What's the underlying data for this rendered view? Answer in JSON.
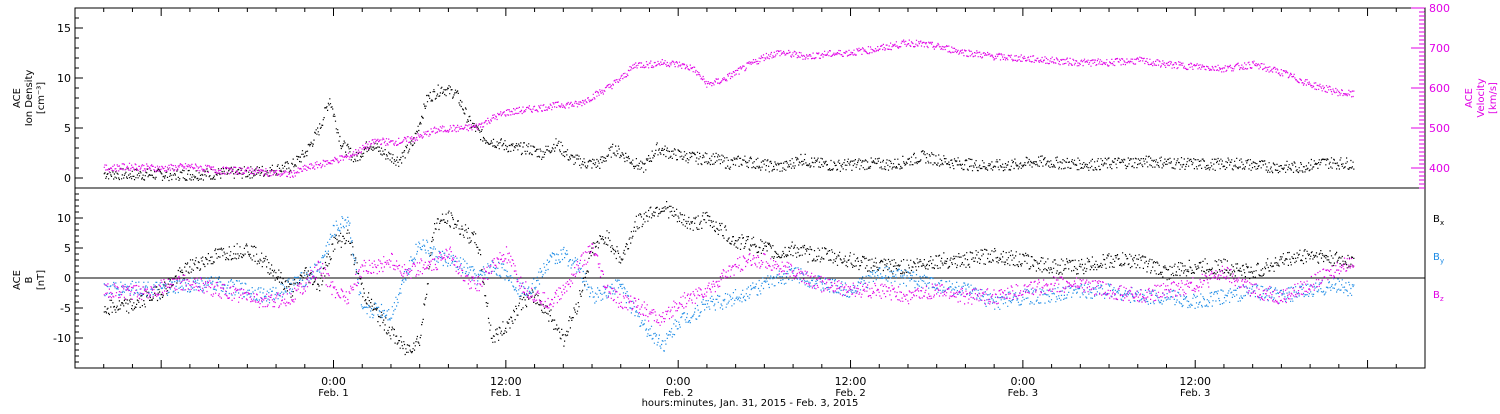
{
  "chart_data": [
    {
      "type": "scatter",
      "panel": "top",
      "ylabel_left": [
        "ACE",
        "Ion Density",
        "[cm⁻³]"
      ],
      "ylabel_right": [
        "ACE",
        "Velocity",
        "[km/s]"
      ],
      "ylim_left": [
        -1,
        17
      ],
      "ylim_right": [
        350,
        800
      ],
      "yticks_left": [
        "0",
        "5",
        "10",
        "15"
      ],
      "yticks_right": [
        "400",
        "500",
        "600",
        "700",
        "800"
      ],
      "series": [
        {
          "axis": "left",
          "color": "#000000",
          "x_hours": [
            -16,
            -14,
            -12,
            -10,
            -8,
            -6,
            -4.5,
            -3,
            -2,
            -1,
            -0.3,
            0.5,
            1.5,
            2.5,
            3.5,
            4.5,
            5.5,
            6.5,
            7.5,
            8.5,
            9.5,
            10.5,
            11.5,
            12.5,
            13.5,
            14.5,
            15.5,
            16.5,
            17.5,
            18.5,
            19.5,
            20.5,
            21.5,
            22.5,
            23.5,
            24.5,
            25.5,
            26.5,
            27.5,
            28.5,
            29.5,
            30.5,
            31.5,
            32.5,
            33.5,
            35,
            37,
            39,
            41,
            43,
            45,
            47,
            49,
            51,
            53,
            55,
            57,
            59,
            61,
            63,
            65,
            67,
            69,
            71
          ],
          "y": [
            0.5,
            0.4,
            0.4,
            0.4,
            0.5,
            0.6,
            0.8,
            1.2,
            2.5,
            5,
            8,
            3.5,
            2,
            3.5,
            2.5,
            1.8,
            3.5,
            8,
            9,
            8.5,
            5.5,
            4,
            3.5,
            3,
            3,
            2.5,
            3.5,
            2,
            1.5,
            1.5,
            3,
            2,
            1,
            3,
            2.5,
            2.2,
            2,
            2,
            1.5,
            1.8,
            1.5,
            1.2,
            1.2,
            2,
            1.5,
            1.3,
            1.5,
            1.4,
            2.2,
            1.6,
            1.3,
            1.3,
            1.7,
            1.5,
            1.4,
            1.6,
            1.7,
            1.5,
            1.4,
            1.5,
            1.2,
            1.1,
            1.6,
            1.5
          ]
        },
        {
          "axis": "right",
          "color": "#e100e6",
          "x_hours": [
            -16,
            -14,
            -12,
            -10,
            -8,
            -6,
            -4.5,
            -3,
            -2,
            -1,
            0,
            1,
            2,
            3,
            4,
            5,
            6,
            7,
            8,
            9,
            10,
            11,
            12,
            13,
            14,
            15,
            16,
            17,
            18,
            19,
            20,
            21,
            22,
            23,
            24,
            25,
            26,
            27,
            28,
            29,
            30,
            31,
            32,
            33,
            34,
            36,
            38,
            40,
            42,
            44,
            46,
            48,
            50,
            52,
            54,
            56,
            58,
            60,
            62,
            64,
            66,
            68,
            70,
            71
          ],
          "y": [
            400,
            405,
            400,
            405,
            395,
            395,
            390,
            385,
            400,
            410,
            420,
            430,
            450,
            470,
            465,
            470,
            480,
            495,
            500,
            500,
            505,
            525,
            540,
            545,
            550,
            555,
            560,
            560,
            580,
            600,
            625,
            660,
            660,
            665,
            660,
            650,
            610,
            620,
            640,
            660,
            680,
            690,
            685,
            680,
            685,
            690,
            700,
            715,
            705,
            690,
            680,
            675,
            670,
            665,
            665,
            670,
            660,
            655,
            650,
            660,
            640,
            610,
            590,
            585
          ]
        }
      ]
    },
    {
      "type": "scatter",
      "panel": "bottom",
      "ylabel": [
        "ACE",
        "B",
        "[nT]"
      ],
      "ylim": [
        -15,
        15
      ],
      "yticks": [
        "-10",
        "-5",
        "0",
        "5",
        "10"
      ],
      "legend": [
        {
          "label_main": "B",
          "label_sub": "x",
          "color": "#000000"
        },
        {
          "label_main": "B",
          "label_sub": "y",
          "color": "#1e8ce6"
        },
        {
          "label_main": "B",
          "label_sub": "z",
          "color": "#e100e6"
        }
      ],
      "legend_position": "right",
      "x_hours": [
        -16,
        -14,
        -12,
        -10,
        -8,
        -6,
        -4.5,
        -3,
        -2,
        -1,
        0,
        1,
        2,
        3,
        4,
        5,
        6,
        7,
        8,
        9,
        10,
        11,
        12,
        13,
        14,
        15,
        16,
        17,
        18,
        19,
        20,
        21,
        22,
        23,
        24,
        25,
        26,
        27,
        28,
        29,
        30,
        31,
        32,
        33,
        34,
        36,
        38,
        40,
        42,
        44,
        46,
        48,
        50,
        52,
        54,
        56,
        58,
        60,
        62,
        64,
        66,
        68,
        70,
        71
      ],
      "series": [
        {
          "name": "Bx",
          "color": "#000000",
          "y": [
            -5,
            -4.5,
            -2,
            2,
            4,
            5,
            2,
            -2,
            1,
            -1,
            6,
            7,
            -2,
            -6,
            -9,
            -12,
            -10,
            9,
            10,
            8,
            6,
            -10,
            -8,
            -4,
            -3,
            -6,
            -10,
            -4,
            5,
            7,
            3,
            9,
            11,
            12,
            10,
            9,
            10,
            8,
            6,
            6,
            5,
            4,
            5,
            4,
            4,
            3,
            2,
            2,
            3,
            3,
            4,
            3,
            2,
            2,
            3,
            3,
            1,
            2,
            2,
            1,
            3,
            4,
            3,
            3
          ]
        },
        {
          "name": "By",
          "color": "#1e8ce6",
          "y": [
            -2,
            -1.5,
            -2,
            -1,
            -1,
            -2,
            -3,
            -1,
            0,
            2,
            8,
            10,
            -6,
            -5,
            -6,
            1,
            6,
            4,
            3,
            2,
            0,
            2,
            1,
            -2,
            -1,
            3,
            4,
            2,
            -3,
            -2,
            -1,
            -6,
            -9,
            -11,
            -7,
            -6,
            -4,
            -4,
            -3,
            -2,
            -1,
            0,
            1,
            0,
            -1,
            -2,
            1,
            0,
            -1,
            -2,
            -4,
            -3,
            -3,
            -2,
            -2,
            -3,
            -3,
            -4,
            -3,
            -2,
            -3,
            -2,
            -1,
            -2
          ]
        },
        {
          "name": "Bz",
          "color": "#e100e6",
          "y": [
            -2,
            -2.5,
            -1.5,
            -0.5,
            -2,
            -3,
            -4,
            -3,
            -1,
            2,
            -2,
            -3,
            2,
            2,
            3,
            1,
            2,
            2,
            5,
            0,
            -1,
            2,
            4,
            -1,
            -3,
            -4,
            -2,
            2,
            5,
            -2,
            -4,
            -4,
            -6,
            -7,
            -4,
            -3,
            -2,
            0,
            2,
            3,
            3,
            2,
            1,
            0,
            -1,
            -2,
            -2,
            -3,
            -2,
            -3,
            -3,
            -2,
            -1,
            -1,
            -2,
            -3,
            -2,
            -1,
            1,
            -2,
            -3,
            -1,
            2,
            3
          ]
        }
      ]
    }
  ],
  "x_axis": {
    "range_hours": [
      -18,
      76
    ],
    "ticks": [
      {
        "h": 0,
        "time": "0:00",
        "date": "Feb. 1"
      },
      {
        "h": 12,
        "time": "12:00",
        "date": "Feb. 1"
      },
      {
        "h": 24,
        "time": "0:00",
        "date": "Feb. 2"
      },
      {
        "h": 36,
        "time": "12:00",
        "date": "Feb. 2"
      },
      {
        "h": 48,
        "time": "0:00",
        "date": "Feb. 3"
      },
      {
        "h": 60,
        "time": "12:00",
        "date": "Feb. 3"
      }
    ],
    "label": "hours:minutes, Jan. 31, 2015 - Feb.  3, 2015"
  }
}
